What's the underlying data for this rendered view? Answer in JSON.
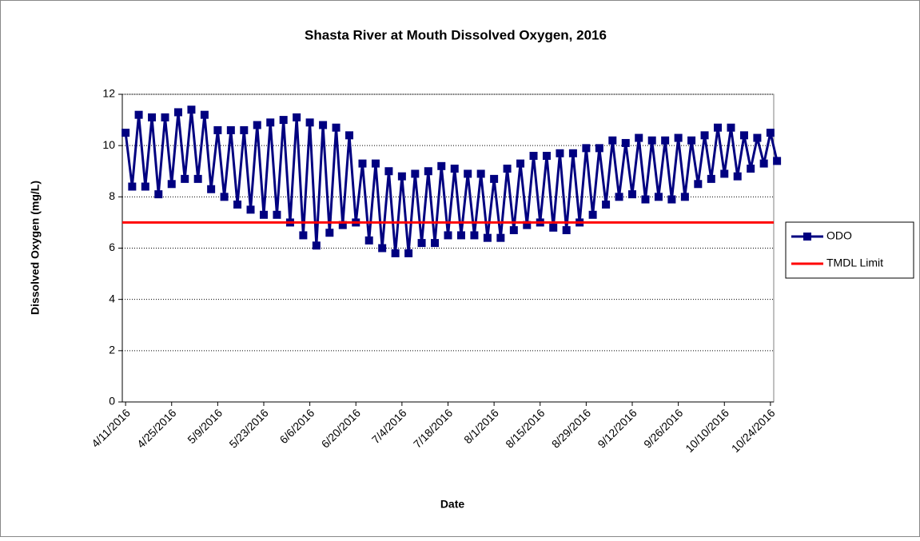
{
  "chart_data": {
    "type": "line",
    "title": "Shasta River at Mouth Dissolved Oxygen, 2016",
    "x_label": "Date",
    "y_label": "Dissolved Oxygen (mg/L)",
    "xlim": [
      "4/10/2016",
      "10/25/2016"
    ],
    "xticks": [
      "4/11/2016",
      "4/25/2016",
      "5/9/2016",
      "5/23/2016",
      "6/6/2016",
      "6/20/2016",
      "7/4/2016",
      "7/18/2016",
      "8/1/2016",
      "8/15/2016",
      "8/29/2016",
      "9/12/2016",
      "9/26/2016",
      "10/10/2016",
      "10/24/2016"
    ],
    "ylim": [
      0,
      12
    ],
    "yticks": [
      0,
      2,
      4,
      6,
      8,
      10,
      12
    ],
    "grid": true,
    "legend": "right",
    "series": [
      {
        "name": "ODO",
        "color": "#000080",
        "marker": "square",
        "x": [
          "4/11/2016",
          "4/13/2016",
          "4/15/2016",
          "4/17/2016",
          "4/19/2016",
          "4/21/2016",
          "4/23/2016",
          "4/25/2016",
          "4/27/2016",
          "4/29/2016",
          "5/1/2016",
          "5/3/2016",
          "5/5/2016",
          "5/7/2016",
          "5/9/2016",
          "5/11/2016",
          "5/13/2016",
          "5/15/2016",
          "5/17/2016",
          "5/19/2016",
          "5/21/2016",
          "5/23/2016",
          "5/25/2016",
          "5/27/2016",
          "5/29/2016",
          "5/31/2016",
          "6/2/2016",
          "6/4/2016",
          "6/6/2016",
          "6/8/2016",
          "6/10/2016",
          "6/12/2016",
          "6/14/2016",
          "6/16/2016",
          "6/18/2016",
          "6/20/2016",
          "6/22/2016",
          "6/24/2016",
          "6/26/2016",
          "6/28/2016",
          "6/30/2016",
          "7/2/2016",
          "7/4/2016",
          "7/6/2016",
          "7/8/2016",
          "7/10/2016",
          "7/12/2016",
          "7/14/2016",
          "7/16/2016",
          "7/18/2016",
          "7/20/2016",
          "7/22/2016",
          "7/24/2016",
          "7/26/2016",
          "7/28/2016",
          "7/30/2016",
          "8/1/2016",
          "8/3/2016",
          "8/5/2016",
          "8/7/2016",
          "8/9/2016",
          "8/11/2016",
          "8/13/2016",
          "8/15/2016",
          "8/17/2016",
          "8/19/2016",
          "8/21/2016",
          "8/23/2016",
          "8/25/2016",
          "8/27/2016",
          "8/29/2016",
          "8/31/2016",
          "9/2/2016",
          "9/4/2016",
          "9/6/2016",
          "9/8/2016",
          "9/10/2016",
          "9/12/2016",
          "9/14/2016",
          "9/16/2016",
          "9/18/2016",
          "9/20/2016",
          "9/22/2016",
          "9/24/2016",
          "9/26/2016",
          "9/28/2016",
          "9/30/2016",
          "10/2/2016",
          "10/4/2016",
          "10/6/2016",
          "10/8/2016",
          "10/10/2016",
          "10/12/2016",
          "10/14/2016",
          "10/16/2016",
          "10/18/2016",
          "10/20/2016",
          "10/22/2016",
          "10/24/2016",
          "10/26/2016"
        ],
        "values": [
          10.5,
          8.4,
          11.2,
          8.4,
          11.1,
          8.1,
          11.1,
          8.5,
          11.3,
          8.7,
          11.4,
          8.7,
          11.2,
          8.3,
          10.6,
          8.0,
          10.6,
          7.7,
          10.6,
          7.5,
          10.8,
          7.3,
          10.9,
          7.3,
          11.0,
          7.0,
          11.1,
          6.5,
          10.9,
          6.1,
          10.8,
          6.6,
          10.7,
          6.9,
          10.4,
          7.0,
          9.3,
          6.3,
          9.3,
          6.0,
          9.0,
          5.8,
          8.8,
          5.8,
          8.9,
          6.2,
          9.0,
          6.2,
          9.2,
          6.5,
          9.1,
          6.5,
          8.9,
          6.5,
          8.9,
          6.4,
          8.7,
          6.4,
          9.1,
          6.7,
          9.3,
          6.9,
          9.6,
          7.0,
          9.6,
          6.8,
          9.7,
          6.7,
          9.7,
          7.0,
          9.9,
          7.3,
          9.9,
          7.7,
          10.2,
          8.0,
          10.1,
          8.1,
          10.3,
          7.9,
          10.2,
          8.0,
          10.2,
          7.9,
          10.3,
          8.0,
          10.2,
          8.5,
          10.4,
          8.7,
          10.7,
          8.9,
          10.7,
          8.8,
          10.4,
          9.1,
          10.3,
          9.3,
          10.5,
          9.4
        ]
      },
      {
        "name": "TMDL Limit",
        "color": "#ff0000",
        "marker": "none",
        "x": [
          "4/10/2016",
          "10/25/2016"
        ],
        "values": [
          7,
          7
        ]
      }
    ]
  }
}
